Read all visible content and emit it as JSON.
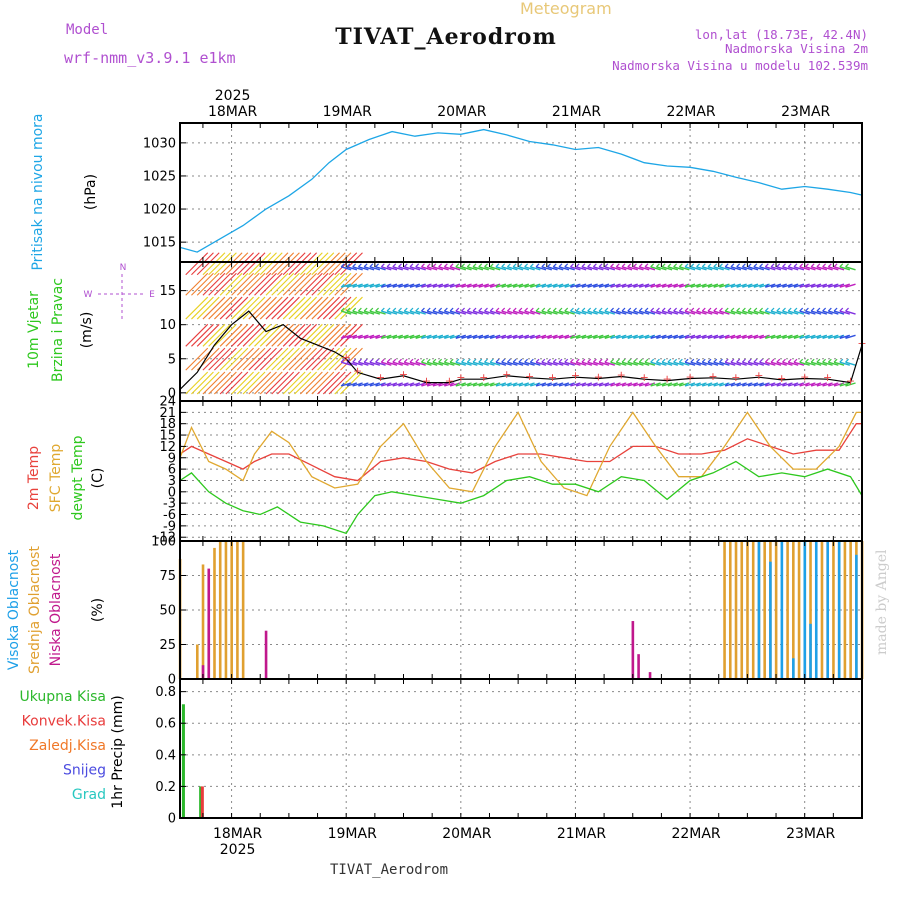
{
  "header": {
    "model_label": "Model",
    "model_name": "wrf-nmm_v3.9.1 e1km",
    "product": "Meteogram",
    "station": "TIVAT_Aerodrom",
    "lonlat": "lon,lat (18.73E, 42.4N)",
    "elev": "Nadmorska Visina 2m",
    "elev_model": "Nadmorska Visina u modelu 102.539m",
    "credit": "made by Angel",
    "footer_station": "TIVAT_Aerodrom"
  },
  "time_axis": {
    "year": "2025",
    "dates": [
      "18MAR",
      "19MAR",
      "20MAR",
      "21MAR",
      "22MAR",
      "23MAR"
    ]
  },
  "colors": {
    "pressure": "#1ea6e6",
    "temp2m": "#e8423c",
    "sfc": "#e0a830",
    "dew": "#2ec81e",
    "high_cloud": "#1ea0e8",
    "mid_cloud": "#e0a030",
    "low_cloud": "#c0188c",
    "total_precip": "#2cb82c",
    "conv_precip": "#e83c3c",
    "frozen": "#f07828",
    "snow": "#4c4ce0",
    "hail": "#28c8c0",
    "purple": "#b050d0"
  },
  "chart_data": [
    {
      "type": "line",
      "panel": "pressure",
      "ylabel_left": "Pritisak na nivou mora",
      "ylabel_unit": "(hPa)",
      "yticks": [
        "1015",
        "1020",
        "1025",
        "1030"
      ],
      "ylim": [
        1012,
        1033
      ],
      "x_range_days": [
        17.55,
        23.5
      ],
      "series": [
        {
          "x": [
            17.55,
            17.7,
            17.9,
            18.1,
            18.3,
            18.5,
            18.7,
            18.85,
            19.0,
            19.2,
            19.4,
            19.6,
            19.8,
            20.0,
            20.2,
            20.4,
            20.6,
            20.8,
            21.0,
            21.2,
            21.4,
            21.6,
            21.8,
            22.0,
            22.2,
            22.4,
            22.6,
            22.8,
            23.0,
            23.2,
            23.4,
            23.5
          ],
          "values": [
            1014.2,
            1013.5,
            1015.5,
            1017.5,
            1020,
            1022,
            1024.5,
            1027,
            1029,
            1030.5,
            1031.7,
            1031,
            1031.5,
            1031.3,
            1032,
            1031.2,
            1030.2,
            1029.7,
            1029,
            1029.3,
            1028.3,
            1027,
            1026.5,
            1026.3,
            1025.7,
            1024.8,
            1024,
            1023,
            1023.4,
            1023,
            1022.5,
            1022.1
          ]
        }
      ]
    },
    {
      "type": "line",
      "panel": "wind",
      "ylabel_left": [
        "10m Vjetar",
        "Brzina i Pravac"
      ],
      "ylabel_unit": "(m/s)",
      "compass_labels": [
        "N",
        "E",
        "W"
      ],
      "yticks": [
        "0",
        "5",
        "10",
        "15"
      ],
      "ylim": [
        -1.2,
        19.2
      ],
      "series": [
        {
          "name": "",
          "x": [
            17.55,
            17.7,
            17.85,
            18.0,
            18.15,
            18.3,
            18.45,
            18.6,
            18.75,
            18.9,
            19.0,
            19.1,
            19.3,
            19.5,
            19.7,
            19.9,
            20.0,
            20.2,
            20.4,
            20.6,
            20.8,
            21.0,
            21.2,
            21.4,
            21.6,
            21.8,
            22.0,
            22.2,
            22.4,
            22.6,
            22.8,
            23.0,
            23.2,
            23.4,
            23.5
          ],
          "values": [
            0.5,
            3,
            7,
            10,
            12,
            9,
            10,
            8,
            7,
            6,
            5,
            3,
            2,
            2.5,
            1.5,
            1.5,
            2,
            2,
            2.5,
            2.2,
            2,
            2.3,
            2.1,
            2.4,
            2,
            1.8,
            2.1,
            2.2,
            2,
            2.3,
            1.9,
            2.1,
            2,
            1.5,
            7
          ]
        }
      ]
    },
    {
      "type": "line",
      "panel": "temperature",
      "ylabel_left": [
        "2m Temp",
        "SFC Temp",
        "dewpt Temp"
      ],
      "ylabel_unit": "(C)",
      "yticks": [
        "-12",
        "-9",
        "-6",
        "-3",
        "0",
        "3",
        "6",
        "9",
        "12",
        "15",
        "18",
        "21",
        "24"
      ],
      "ylim": [
        -13,
        24
      ],
      "series": [
        {
          "name": "2m Temp",
          "x": [
            17.55,
            17.65,
            17.8,
            17.95,
            18.1,
            18.2,
            18.35,
            18.5,
            18.7,
            18.9,
            19.1,
            19.3,
            19.5,
            19.7,
            19.9,
            20.1,
            20.3,
            20.5,
            20.7,
            20.9,
            21.1,
            21.3,
            21.5,
            21.7,
            21.9,
            22.1,
            22.3,
            22.5,
            22.7,
            22.9,
            23.1,
            23.3,
            23.45,
            23.5
          ],
          "values": [
            10,
            12,
            10,
            8,
            6,
            8,
            10,
            10,
            7,
            4,
            3,
            8,
            9,
            8,
            6,
            5,
            8,
            10,
            10,
            9,
            8,
            8,
            12,
            12,
            10,
            10,
            11,
            14,
            12,
            10,
            11,
            11,
            18,
            18
          ]
        },
        {
          "name": "SFC Temp",
          "x": [
            17.55,
            17.65,
            17.8,
            17.95,
            18.1,
            18.2,
            18.35,
            18.5,
            18.7,
            18.9,
            19.1,
            19.3,
            19.5,
            19.7,
            19.9,
            20.1,
            20.3,
            20.5,
            20.7,
            20.9,
            21.1,
            21.3,
            21.5,
            21.7,
            21.9,
            22.1,
            22.3,
            22.5,
            22.7,
            22.9,
            23.1,
            23.3,
            23.45,
            23.5
          ],
          "values": [
            9,
            17,
            8,
            6,
            3,
            10,
            16,
            13,
            4,
            1,
            2,
            12,
            18,
            8,
            1,
            0,
            12,
            21,
            8,
            1,
            -1,
            12,
            21,
            12,
            4,
            4,
            12,
            21,
            12,
            6,
            6,
            12,
            21,
            21
          ]
        },
        {
          "name": "dewpt Temp",
          "x": [
            17.55,
            17.65,
            17.8,
            17.95,
            18.1,
            18.25,
            18.4,
            18.6,
            18.8,
            19.0,
            19.1,
            19.25,
            19.4,
            19.6,
            19.8,
            20.0,
            20.2,
            20.4,
            20.6,
            20.8,
            21.0,
            21.2,
            21.4,
            21.6,
            21.8,
            22.0,
            22.2,
            22.4,
            22.6,
            22.8,
            23.0,
            23.2,
            23.4,
            23.5
          ],
          "values": [
            3,
            5,
            0,
            -3,
            -5,
            -6,
            -4,
            -8,
            -9,
            -11,
            -6,
            -1,
            0,
            -1,
            -2,
            -3,
            -1,
            3,
            4,
            2,
            2,
            0,
            4,
            3,
            -2,
            3,
            5,
            8,
            4,
            5,
            4,
            6,
            4,
            -1
          ]
        }
      ]
    },
    {
      "type": "bar",
      "panel": "clouds",
      "ylabel_left": [
        "Visoka Oblacnost",
        "Srednja Oblacnost",
        "Niska Oblacnost"
      ],
      "ylabel_unit": "(%)",
      "yticks": [
        "0",
        "25",
        "50",
        "75",
        "100"
      ],
      "ylim": [
        0,
        100
      ],
      "series": [
        {
          "name": "Srednja Oblacnost",
          "x": [
            17.55,
            17.7,
            17.75,
            17.8,
            17.85,
            17.9,
            17.95,
            18.0,
            18.05,
            18.1,
            22.3,
            22.35,
            22.4,
            22.45,
            22.5,
            22.55,
            22.6,
            22.65,
            22.7,
            22.75,
            22.85,
            22.9,
            22.95,
            23.0,
            23.05,
            23.15,
            23.2,
            23.25,
            23.3,
            23.35,
            23.4,
            23.45,
            23.5
          ],
          "values": [
            87,
            25,
            83,
            40,
            95,
            100,
            100,
            100,
            100,
            100,
            100,
            100,
            100,
            100,
            100,
            100,
            100,
            100,
            100,
            100,
            100,
            100,
            100,
            100,
            100,
            100,
            100,
            100,
            100,
            100,
            100,
            100,
            100
          ]
        },
        {
          "name": "Niska Oblacnost",
          "x": [
            17.75,
            17.8,
            18.3,
            21.5,
            21.55,
            21.65
          ],
          "values": [
            10,
            80,
            35,
            42,
            18,
            5
          ]
        },
        {
          "name": "Visoka Oblacnost",
          "x": [
            22.6,
            22.7,
            22.8,
            22.9,
            23.0,
            23.05,
            23.1,
            23.2,
            23.3,
            23.45
          ],
          "values": [
            100,
            85,
            100,
            15,
            100,
            40,
            100,
            100,
            100,
            90
          ]
        }
      ]
    },
    {
      "type": "bar",
      "panel": "precip",
      "ylabel_unit": "1hr Precip (mm)",
      "legend": [
        "Ukupna Kisa",
        "Konvek.Kisa",
        "Zaledj.Kisa",
        "Snijeg",
        "Grad"
      ],
      "yticks": [
        "0",
        "0.2",
        "0.4",
        "0.6",
        "0.8"
      ],
      "ylim": [
        0,
        0.88
      ],
      "series": [
        {
          "name": "Ukupna Kisa",
          "x": [
            17.58,
            17.73
          ],
          "values": [
            0.72,
            0.2
          ]
        },
        {
          "name": "Konvek.Kisa",
          "x": [
            17.745
          ],
          "values": [
            0.2
          ]
        }
      ]
    }
  ]
}
